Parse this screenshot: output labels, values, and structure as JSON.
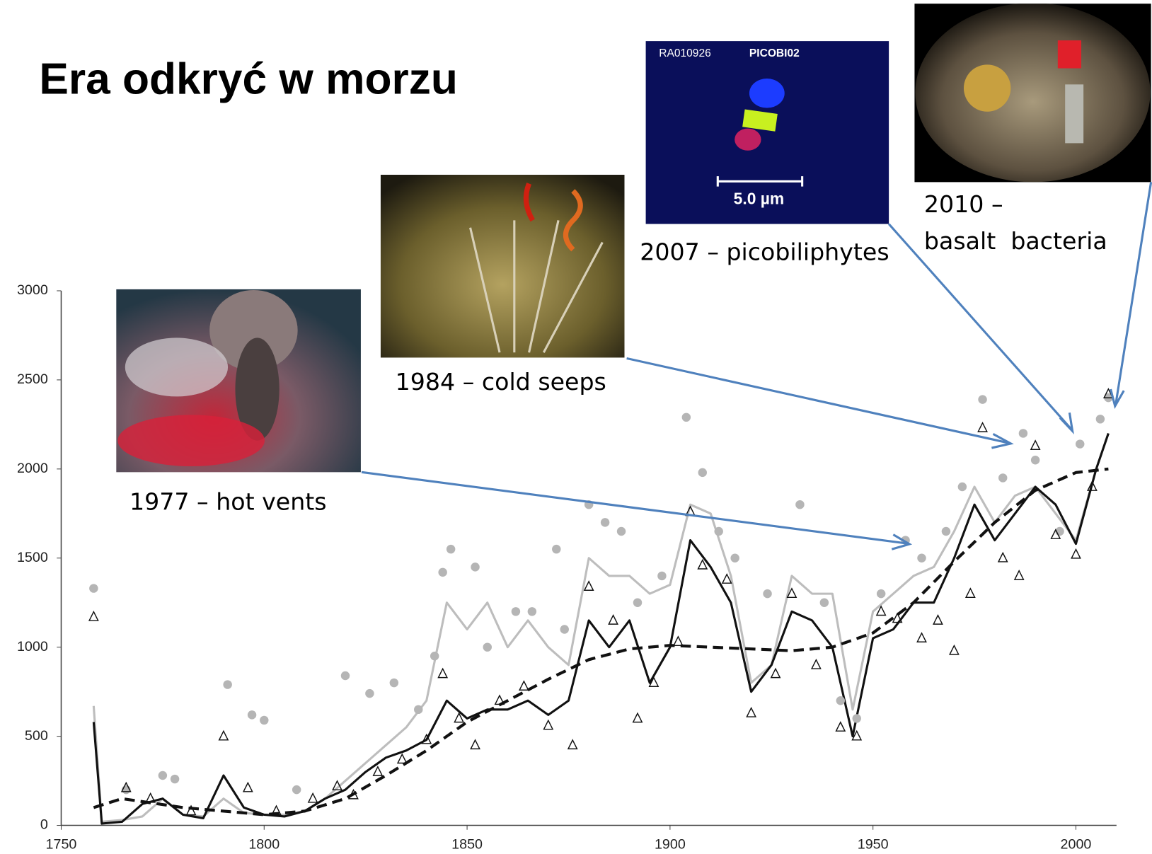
{
  "title": "Era odkryć w morzu",
  "photos": [
    {
      "label": "1977 – hot vents"
    },
    {
      "label": "1984 – cold seeps"
    },
    {
      "label": "2007 – picobiliphytes",
      "texts": [
        "RA010926",
        "PICOBI02",
        "5.0 µm"
      ]
    },
    {
      "label": "2010 –",
      "label2": "basalt  bacteria"
    }
  ],
  "chart_data": {
    "type": "line",
    "xlim": [
      1750,
      2010
    ],
    "xticks": [
      1750,
      1800,
      1850,
      1900,
      1950,
      2000
    ],
    "ylim": [
      0,
      3000
    ],
    "yticks": [
      0,
      500,
      1000,
      1500,
      2000,
      2500,
      3000
    ],
    "x": [
      1758,
      1760,
      1765,
      1770,
      1775,
      1780,
      1785,
      1790,
      1795,
      1800,
      1805,
      1810,
      1815,
      1820,
      1825,
      1830,
      1835,
      1840,
      1845,
      1850,
      1855,
      1860,
      1865,
      1870,
      1875,
      1880,
      1885,
      1890,
      1895,
      1900,
      1905,
      1910,
      1915,
      1920,
      1925,
      1930,
      1935,
      1940,
      1945,
      1950,
      1955,
      1960,
      1965,
      1970,
      1975,
      1980,
      1985,
      1990,
      1995,
      2000,
      2005,
      2008
    ],
    "series": [
      {
        "color": "#bdbdbd",
        "marker": "none",
        "dash": false,
        "values": [
          670,
          20,
          30,
          50,
          150,
          60,
          50,
          150,
          70,
          60,
          60,
          80,
          150,
          250,
          350,
          450,
          550,
          700,
          1250,
          1100,
          1250,
          1000,
          1150,
          1000,
          900,
          1500,
          1400,
          1400,
          1300,
          1350,
          1800,
          1750,
          1400,
          800,
          900,
          1400,
          1300,
          1300,
          650,
          1200,
          1300,
          1400,
          1450,
          1650,
          1900,
          1700,
          1850,
          1900,
          1750,
          1600,
          2000,
          2200
        ]
      },
      {
        "color": "#111111",
        "marker": "none",
        "dash": false,
        "values": [
          580,
          10,
          20,
          120,
          150,
          60,
          40,
          280,
          100,
          60,
          50,
          80,
          150,
          200,
          300,
          380,
          420,
          480,
          700,
          600,
          650,
          650,
          700,
          620,
          700,
          1150,
          1000,
          1150,
          800,
          1000,
          1600,
          1450,
          1250,
          750,
          900,
          1200,
          1150,
          1000,
          500,
          1050,
          1100,
          1250,
          1250,
          1500,
          1800,
          1600,
          1750,
          1900,
          1800,
          1580,
          2000,
          2200
        ]
      },
      {
        "color": "#111111",
        "marker": "none",
        "dash": true,
        "x": [
          1758,
          1765,
          1780,
          1800,
          1810,
          1820,
          1830,
          1840,
          1850,
          1860,
          1870,
          1880,
          1890,
          1900,
          1910,
          1920,
          1930,
          1940,
          1950,
          1960,
          1970,
          1980,
          1990,
          2000,
          2008
        ],
        "values": [
          100,
          150,
          100,
          60,
          80,
          150,
          280,
          420,
          580,
          700,
          820,
          930,
          990,
          1010,
          1000,
          990,
          980,
          1000,
          1080,
          1250,
          1480,
          1700,
          1880,
          1980,
          2000
        ]
      },
      {
        "color": "#b5b5b5",
        "marker": "circle",
        "x": [
          1758,
          1766,
          1775,
          1778,
          1791,
          1797,
          1800,
          1808,
          1820,
          1826,
          1832,
          1838,
          1842,
          1844,
          1846,
          1852,
          1855,
          1862,
          1866,
          1872,
          1874,
          1880,
          1884,
          1888,
          1892,
          1898,
          1904,
          1908,
          1912,
          1916,
          1924,
          1932,
          1938,
          1942,
          1946,
          1952,
          1958,
          1962,
          1968,
          1972,
          1977,
          1982,
          1987,
          1990,
          1996,
          2001,
          2006,
          2008
        ],
        "values": [
          1330,
          200,
          280,
          260,
          790,
          620,
          590,
          200,
          840,
          740,
          800,
          650,
          950,
          1420,
          1550,
          1450,
          1000,
          1200,
          1200,
          1550,
          1100,
          1800,
          1700,
          1650,
          1250,
          1400,
          2290,
          1980,
          1650,
          1500,
          1300,
          1800,
          1250,
          700,
          600,
          1300,
          1600,
          1500,
          1650,
          1900,
          2390,
          1950,
          2200,
          2050,
          1650,
          2140,
          2280,
          2400
        ]
      },
      {
        "color": "#111111",
        "marker": "triangle",
        "x": [
          1758,
          1766,
          1772,
          1782,
          1790,
          1796,
          1803,
          1812,
          1818,
          1822,
          1828,
          1834,
          1840,
          1844,
          1848,
          1852,
          1858,
          1864,
          1870,
          1876,
          1880,
          1886,
          1892,
          1896,
          1902,
          1905,
          1908,
          1914,
          1920,
          1926,
          1930,
          1936,
          1942,
          1946,
          1952,
          1956,
          1962,
          1966,
          1970,
          1974,
          1977,
          1982,
          1986,
          1990,
          1995,
          2000,
          2004,
          2008
        ],
        "values": [
          1170,
          210,
          150,
          80,
          500,
          210,
          80,
          150,
          220,
          170,
          300,
          370,
          480,
          850,
          600,
          450,
          700,
          780,
          560,
          450,
          1340,
          1150,
          600,
          800,
          1030,
          1760,
          1460,
          1380,
          630,
          850,
          1300,
          900,
          550,
          500,
          1200,
          1160,
          1050,
          1150,
          980,
          1300,
          2230,
          1500,
          1400,
          2130,
          1630,
          1520,
          1900,
          2420
        ]
      }
    ]
  }
}
